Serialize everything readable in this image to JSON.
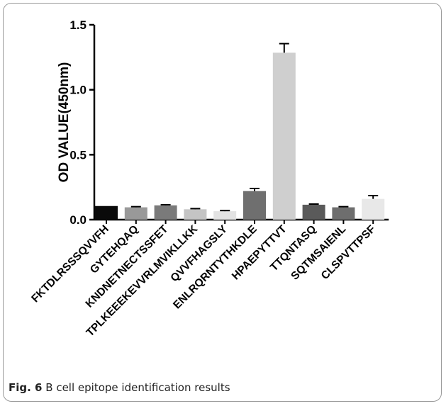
{
  "figure": {
    "caption_label": "Fig. 6",
    "caption_text": "B cell epitope identification results"
  },
  "chart_data": {
    "type": "bar",
    "title": "",
    "xlabel": "",
    "ylabel": "OD VALUE(450nm)",
    "ylim": [
      0,
      1.5
    ],
    "yticks": [
      "0.0",
      "0.5",
      "1.0",
      "1.5"
    ],
    "grid": false,
    "categories": [
      "FKTDLRSSSQVVFH",
      "GYTEHQAQ",
      "KNDNETNECTSSFET",
      "TPLKEEEKEVVRLMVIKLLKK",
      "QVVFHAGSLY",
      "ENLRQRNTYTHKDLE",
      "HPAEPYTTVT",
      "TTQNTASQ",
      "SQTMSAIENL",
      "CLSPVTTPSF"
    ],
    "values": [
      0.105,
      0.095,
      0.11,
      0.08,
      0.065,
      0.22,
      1.285,
      0.115,
      0.095,
      0.16
    ],
    "errors": [
      0.0,
      0.005,
      0.005,
      0.005,
      0.005,
      0.02,
      0.07,
      0.005,
      0.005,
      0.025
    ],
    "colors": [
      "#0a0a0a",
      "#999999",
      "#7a7a7a",
      "#c4c4c4",
      "#e3e3e3",
      "#6f6f6f",
      "#cfcfcf",
      "#5a5a5a",
      "#6e6e6e",
      "#e8e8e8"
    ]
  }
}
